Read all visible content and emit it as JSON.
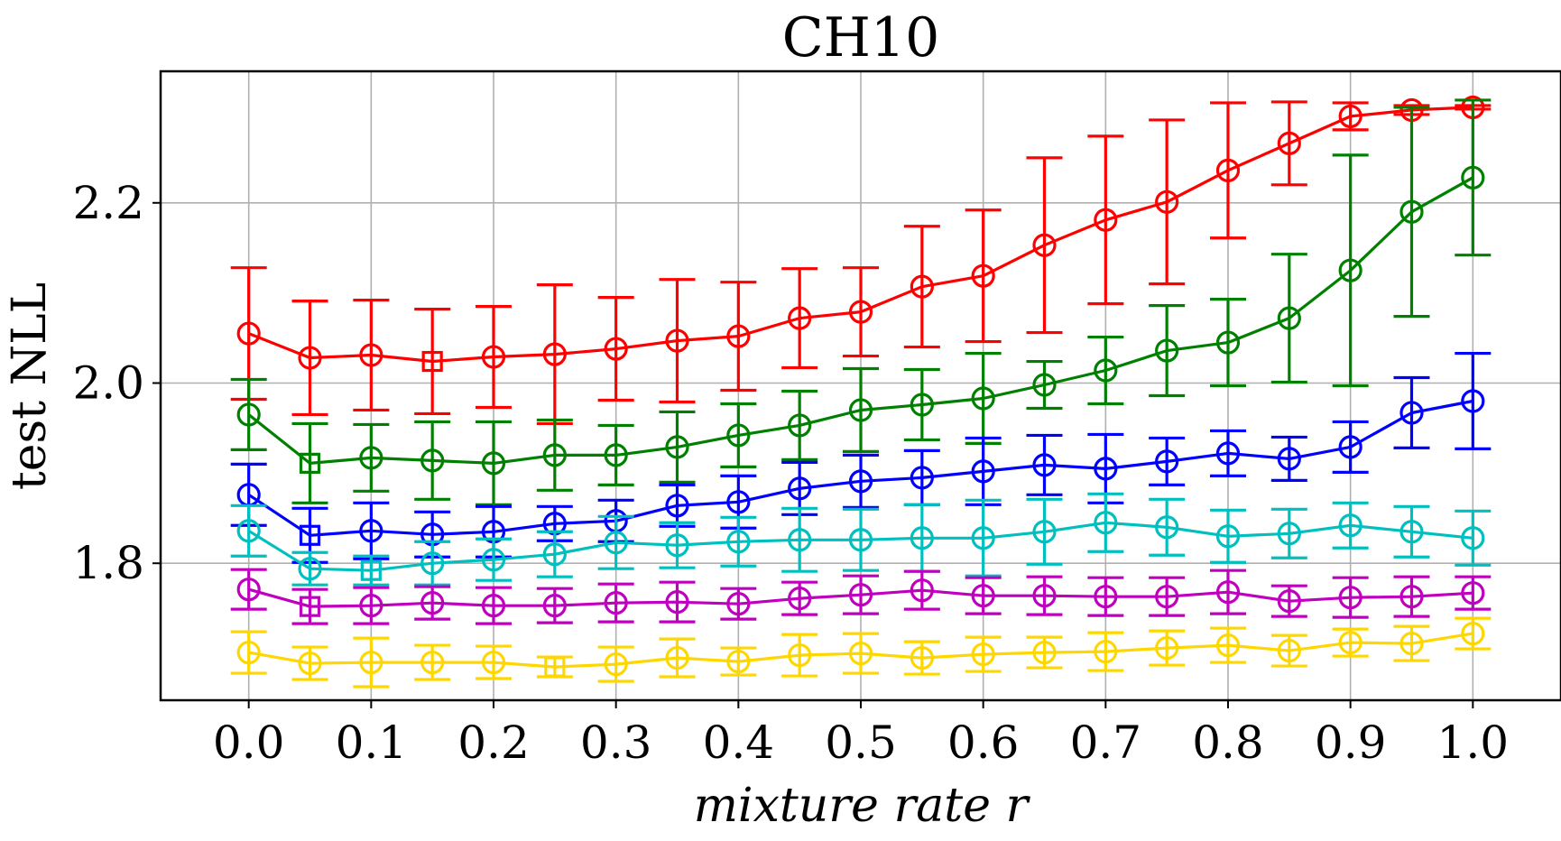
{
  "chart_data": {
    "type": "line",
    "title": "CH10",
    "xlabel": "mixture rate r",
    "ylabel": "test NLL",
    "xlim": [
      -0.072,
      1.072
    ],
    "ylim": [
      1.648,
      2.346
    ],
    "xticks": [
      "0.0",
      "0.1",
      "0.2",
      "0.3",
      "0.4",
      "0.5",
      "0.6",
      "0.7",
      "0.8",
      "0.9",
      "1.0"
    ],
    "yticks": [
      "1.8",
      "2.0",
      "2.2"
    ],
    "grid": true,
    "x": [
      0.0,
      0.05,
      0.1,
      0.15,
      0.2,
      0.25,
      0.3,
      0.35,
      0.4,
      0.45,
      0.5,
      0.55,
      0.6,
      0.65,
      0.7,
      0.75,
      0.8,
      0.85,
      0.9,
      0.95,
      1.0
    ],
    "series": [
      {
        "name": "red",
        "color": "#ff0000",
        "values": [
          2.055,
          2.028,
          2.031,
          2.024,
          2.029,
          2.032,
          2.038,
          2.047,
          2.052,
          2.072,
          2.079,
          2.107,
          2.119,
          2.153,
          2.181,
          2.201,
          2.236,
          2.266,
          2.296,
          2.303,
          2.306
        ],
        "errors": [
          0.073,
          0.063,
          0.061,
          0.058,
          0.056,
          0.077,
          0.057,
          0.068,
          0.06,
          0.055,
          0.049,
          0.067,
          0.073,
          0.097,
          0.093,
          0.091,
          0.075,
          0.046,
          0.015,
          0.005,
          0.002
        ],
        "markers": [
          "o",
          "o",
          "o",
          "s",
          "o",
          "o",
          "o",
          "o",
          "o",
          "o",
          "o",
          "o",
          "o",
          "o",
          "o",
          "o",
          "o",
          "o",
          "o",
          "o",
          "o"
        ]
      },
      {
        "name": "green",
        "color": "#008000",
        "values": [
          1.965,
          1.911,
          1.917,
          1.914,
          1.911,
          1.92,
          1.92,
          1.929,
          1.942,
          1.953,
          1.97,
          1.976,
          1.983,
          1.998,
          2.014,
          2.036,
          2.045,
          2.072,
          2.125,
          2.19,
          2.228
        ],
        "errors": [
          0.039,
          0.044,
          0.037,
          0.043,
          0.046,
          0.039,
          0.033,
          0.039,
          0.035,
          0.038,
          0.046,
          0.039,
          0.05,
          0.026,
          0.037,
          0.05,
          0.048,
          0.071,
          0.128,
          0.116,
          0.086
        ],
        "markers": [
          "o",
          "s",
          "o",
          "o",
          "o",
          "o",
          "o",
          "o",
          "o",
          "o",
          "o",
          "o",
          "o",
          "o",
          "o",
          "o",
          "o",
          "o",
          "o",
          "o",
          "o"
        ]
      },
      {
        "name": "blue",
        "color": "#0000ff",
        "values": [
          1.876,
          1.831,
          1.836,
          1.832,
          1.835,
          1.844,
          1.847,
          1.864,
          1.868,
          1.883,
          1.891,
          1.895,
          1.902,
          1.909,
          1.905,
          1.913,
          1.922,
          1.916,
          1.929,
          1.967,
          1.98
        ],
        "errors": [
          0.034,
          0.03,
          0.031,
          0.025,
          0.028,
          0.019,
          0.023,
          0.023,
          0.029,
          0.029,
          0.029,
          0.03,
          0.037,
          0.033,
          0.038,
          0.026,
          0.025,
          0.024,
          0.028,
          0.039,
          0.053
        ],
        "markers": [
          "o",
          "s",
          "o",
          "o",
          "o",
          "o",
          "o",
          "o",
          "o",
          "o",
          "o",
          "o",
          "o",
          "o",
          "o",
          "o",
          "o",
          "o",
          "o",
          "o",
          "o"
        ]
      },
      {
        "name": "cyan",
        "color": "#00bfbf",
        "values": [
          1.836,
          1.794,
          1.792,
          1.8,
          1.804,
          1.81,
          1.823,
          1.82,
          1.824,
          1.826,
          1.826,
          1.828,
          1.828,
          1.835,
          1.845,
          1.84,
          1.83,
          1.833,
          1.842,
          1.835,
          1.828
        ],
        "errors": [
          0.028,
          0.018,
          0.016,
          0.024,
          0.023,
          0.025,
          0.029,
          0.025,
          0.027,
          0.035,
          0.034,
          0.037,
          0.042,
          0.036,
          0.032,
          0.031,
          0.029,
          0.027,
          0.025,
          0.028,
          0.03
        ],
        "markers": [
          "o",
          "o",
          "s",
          "o",
          "o",
          "o",
          "o",
          "o",
          "o",
          "o",
          "o",
          "o",
          "o",
          "o",
          "o",
          "o",
          "o",
          "o",
          "o",
          "o",
          "o"
        ]
      },
      {
        "name": "magenta",
        "color": "#bf00bf",
        "values": [
          1.771,
          1.752,
          1.753,
          1.756,
          1.753,
          1.753,
          1.756,
          1.757,
          1.755,
          1.761,
          1.765,
          1.77,
          1.764,
          1.764,
          1.763,
          1.763,
          1.768,
          1.758,
          1.762,
          1.763,
          1.767
        ],
        "errors": [
          0.022,
          0.019,
          0.02,
          0.018,
          0.02,
          0.019,
          0.021,
          0.022,
          0.017,
          0.018,
          0.021,
          0.021,
          0.02,
          0.021,
          0.021,
          0.021,
          0.024,
          0.017,
          0.022,
          0.022,
          0.018
        ],
        "markers": [
          "o",
          "s",
          "o",
          "o",
          "o",
          "o",
          "o",
          "o",
          "o",
          "o",
          "o",
          "o",
          "o",
          "o",
          "o",
          "o",
          "o",
          "o",
          "o",
          "o",
          "o"
        ]
      },
      {
        "name": "gold",
        "color": "#ffd700",
        "values": [
          1.701,
          1.689,
          1.69,
          1.69,
          1.69,
          1.685,
          1.688,
          1.695,
          1.691,
          1.698,
          1.7,
          1.695,
          1.699,
          1.701,
          1.702,
          1.706,
          1.709,
          1.703,
          1.712,
          1.711,
          1.722
        ],
        "errors": [
          0.023,
          0.018,
          0.027,
          0.019,
          0.018,
          0.011,
          0.019,
          0.021,
          0.015,
          0.023,
          0.022,
          0.018,
          0.019,
          0.017,
          0.021,
          0.019,
          0.019,
          0.017,
          0.015,
          0.019,
          0.017
        ],
        "markers": [
          "o",
          "o",
          "o",
          "o",
          "o",
          "s",
          "o",
          "o",
          "o",
          "o",
          "o",
          "o",
          "o",
          "o",
          "o",
          "o",
          "o",
          "o",
          "o",
          "o",
          "o"
        ]
      }
    ]
  }
}
